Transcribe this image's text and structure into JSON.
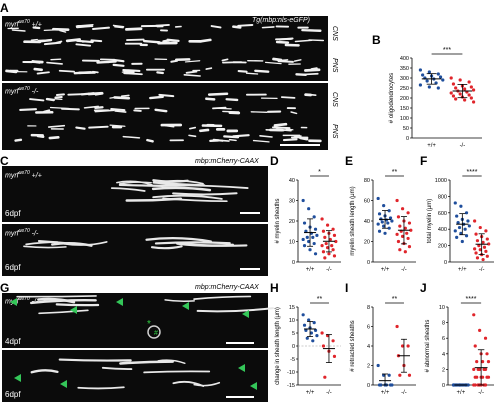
{
  "panels": {
    "A": {
      "letter": "A",
      "transgene": "Tg(mbp:nls-eGFP)",
      "genotype_wt": "myrf",
      "allele": "ue70",
      "genotype_suffix_wt": " +/+",
      "genotype_suffix_mut": " -/-",
      "side_top": "CNS",
      "side_bottom": "PNS"
    },
    "C": {
      "letter": "C",
      "transgene": "mbp:mCherry-CAAX",
      "stage_a": "6dpf",
      "stage_b": "6dpf"
    },
    "G": {
      "letter": "G",
      "transgene": "mbp:mCherry-CAAX",
      "stage_a": "4dpf",
      "stage_b": "6dpf",
      "asterisk": "*",
      "hash": "#"
    }
  },
  "charts": {
    "B": {
      "letter": "B",
      "ylabel": "# oligodendrocytes",
      "sig": "***"
    },
    "D": {
      "letter": "D",
      "ylabel": "# myelin sheaths",
      "sig": "*"
    },
    "E": {
      "letter": "E",
      "ylabel": "myelin sheath length (μm)",
      "sig": "**"
    },
    "F": {
      "letter": "F",
      "ylabel": "total myelin (μm)",
      "sig": "****"
    },
    "H": {
      "letter": "H",
      "ylabel": "change in sheath length (μm)",
      "sig": "**"
    },
    "I": {
      "letter": "I",
      "ylabel": "# retracted sheaths",
      "sig": "**"
    },
    "J": {
      "letter": "J",
      "ylabel": "# abnormal sheaths",
      "sig": "****"
    }
  },
  "colors": {
    "wt": "#1f4e9c",
    "mut": "#e0252b"
  },
  "chart_data": [
    {
      "type": "scatter",
      "panel": "B",
      "categories": [
        "+/+",
        "-/-"
      ],
      "ylim": [
        0,
        400
      ],
      "yticks": [
        0,
        50,
        100,
        150,
        200,
        250,
        300,
        350,
        400
      ],
      "series": [
        {
          "values": [
            340,
            330,
            320,
            315,
            310,
            305,
            300,
            295,
            290,
            285,
            275,
            265,
            255,
            250
          ]
        },
        {
          "values": [
            300,
            290,
            280,
            270,
            260,
            255,
            250,
            245,
            240,
            235,
            230,
            225,
            220,
            215,
            210,
            205,
            200,
            195,
            190,
            180
          ]
        }
      ]
    },
    {
      "type": "scatter",
      "panel": "D",
      "categories": [
        "+/+",
        "-/-"
      ],
      "ylim": [
        0,
        40
      ],
      "yticks": [
        0,
        10,
        20,
        30,
        40
      ],
      "series": [
        {
          "values": [
            30,
            26,
            22,
            19,
            17,
            16,
            15,
            14,
            13,
            12,
            12,
            11,
            10,
            9,
            8,
            6,
            4
          ]
        },
        {
          "values": [
            21,
            18,
            16,
            15,
            14,
            13,
            12,
            11,
            10,
            9,
            8,
            8,
            7,
            6,
            5,
            4,
            3,
            2
          ]
        }
      ]
    },
    {
      "type": "scatter",
      "panel": "E",
      "categories": [
        "+/+",
        "-/-"
      ],
      "ylim": [
        0,
        80
      ],
      "yticks": [
        0,
        20,
        40,
        60,
        80
      ],
      "series": [
        {
          "values": [
            62,
            55,
            50,
            47,
            45,
            43,
            42,
            41,
            40,
            39,
            38,
            37,
            35,
            33,
            30,
            28
          ]
        },
        {
          "values": [
            60,
            52,
            48,
            44,
            40,
            38,
            35,
            33,
            31,
            30,
            28,
            27,
            25,
            23,
            20,
            18,
            15,
            12,
            10
          ]
        }
      ]
    },
    {
      "type": "scatter",
      "panel": "F",
      "categories": [
        "+/+",
        "-/-"
      ],
      "ylim": [
        0,
        1000
      ],
      "yticks": [
        0,
        200,
        400,
        600,
        800,
        1000
      ],
      "series": [
        {
          "values": [
            720,
            680,
            600,
            560,
            520,
            500,
            480,
            460,
            440,
            420,
            400,
            380,
            350,
            320,
            300,
            250
          ]
        },
        {
          "values": [
            500,
            420,
            380,
            340,
            310,
            280,
            260,
            240,
            220,
            200,
            180,
            160,
            150,
            130,
            110,
            90,
            70,
            50,
            30
          ]
        }
      ]
    },
    {
      "type": "scatter",
      "panel": "H",
      "categories": [
        "+/+",
        "-/-"
      ],
      "ylim": [
        -15,
        15
      ],
      "yticks": [
        -15,
        -10,
        -5,
        0,
        5,
        10,
        15
      ],
      "series": [
        {
          "values": [
            12,
            10,
            9,
            8,
            7,
            6,
            6,
            5,
            4,
            3,
            2
          ]
        },
        {
          "values": [
            5,
            4,
            2,
            0,
            -2,
            -4,
            -12
          ]
        }
      ]
    },
    {
      "type": "scatter",
      "panel": "I",
      "categories": [
        "+/+",
        "-/-"
      ],
      "ylim": [
        0,
        8
      ],
      "yticks": [
        0,
        2,
        4,
        6,
        8
      ],
      "series": [
        {
          "values": [
            2,
            1,
            1,
            0,
            0,
            0,
            0,
            0,
            0
          ]
        },
        {
          "values": [
            6,
            4,
            4,
            3,
            2,
            1,
            1
          ]
        }
      ]
    },
    {
      "type": "scatter",
      "panel": "J",
      "categories": [
        "+/+",
        "-/-"
      ],
      "ylim": [
        0,
        10
      ],
      "yticks": [
        0,
        2,
        4,
        6,
        8,
        10
      ],
      "series": [
        {
          "values": [
            0,
            0,
            0,
            0,
            0,
            0,
            0,
            0,
            0,
            0,
            0,
            0,
            0,
            0,
            0,
            0,
            0
          ]
        },
        {
          "values": [
            9,
            7,
            6,
            5,
            4,
            4,
            3,
            3,
            3,
            2,
            2,
            2,
            2,
            2,
            1,
            1,
            1,
            1,
            1,
            1,
            0,
            0,
            0,
            0,
            0,
            0,
            0
          ]
        }
      ]
    }
  ]
}
